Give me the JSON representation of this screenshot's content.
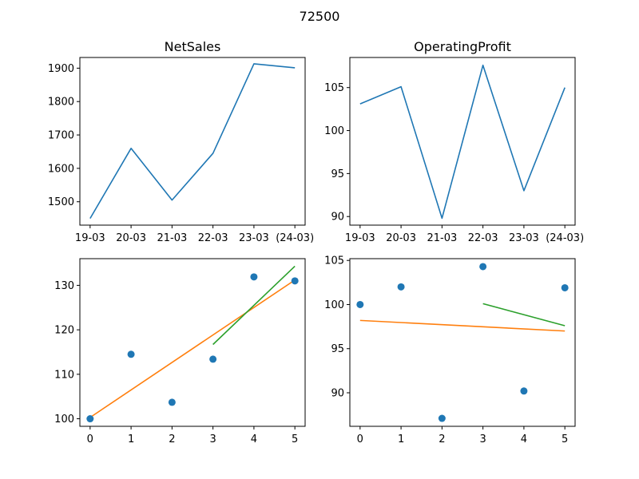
{
  "figure": {
    "title": "72500"
  },
  "colors": {
    "blue": "#1f77b4",
    "orange": "#ff7f0e",
    "green": "#2ca02c"
  },
  "chart_data": [
    {
      "type": "line",
      "title": "NetSales",
      "categories": [
        "19-03",
        "20-03",
        "21-03",
        "22-03",
        "23-03",
        "(24-03)"
      ],
      "series": [
        {
          "values": [
            1450,
            1660,
            1505,
            1645,
            1913,
            1901
          ]
        }
      ],
      "ylim": [
        1430,
        1932
      ],
      "yticks": [
        1500,
        1600,
        1700,
        1800,
        1900
      ],
      "grid": false
    },
    {
      "type": "line",
      "title": "OperatingProfit",
      "categories": [
        "19-03",
        "20-03",
        "21-03",
        "22-03",
        "23-03",
        "(24-03)"
      ],
      "series": [
        {
          "values": [
            103.1,
            105.1,
            89.8,
            107.6,
            93.0,
            105.0
          ]
        }
      ],
      "ylim": [
        89.0,
        108.5
      ],
      "yticks": [
        90,
        95,
        100,
        105
      ],
      "grid": false
    },
    {
      "type": "scatter",
      "title": "",
      "x": [
        0,
        1,
        2,
        3,
        4,
        5
      ],
      "y": [
        100,
        114.5,
        103.7,
        113.4,
        131.9,
        131.0
      ],
      "trend_lines": [
        {
          "x": [
            0,
            5
          ],
          "y": [
            100.3,
            131.2
          ]
        },
        {
          "x": [
            3,
            5
          ],
          "y": [
            116.7,
            134.3
          ]
        }
      ],
      "xlim": [
        -0.25,
        5.25
      ],
      "ylim": [
        98.3,
        136.0
      ],
      "xticks": [
        0,
        1,
        2,
        3,
        4,
        5
      ],
      "yticks": [
        100,
        110,
        120,
        130
      ],
      "grid": false
    },
    {
      "type": "scatter",
      "title": "",
      "x": [
        0,
        1,
        2,
        3,
        4,
        5
      ],
      "y": [
        100,
        102,
        87.1,
        104.3,
        90.2,
        101.9
      ],
      "trend_lines": [
        {
          "x": [
            0,
            5
          ],
          "y": [
            98.2,
            97.0
          ]
        },
        {
          "x": [
            3,
            5
          ],
          "y": [
            100.1,
            97.6
          ]
        }
      ],
      "xlim": [
        -0.25,
        5.25
      ],
      "ylim": [
        86.2,
        105.2
      ],
      "xticks": [
        0,
        1,
        2,
        3,
        4,
        5
      ],
      "yticks": [
        90,
        95,
        100,
        105
      ],
      "grid": false
    }
  ]
}
